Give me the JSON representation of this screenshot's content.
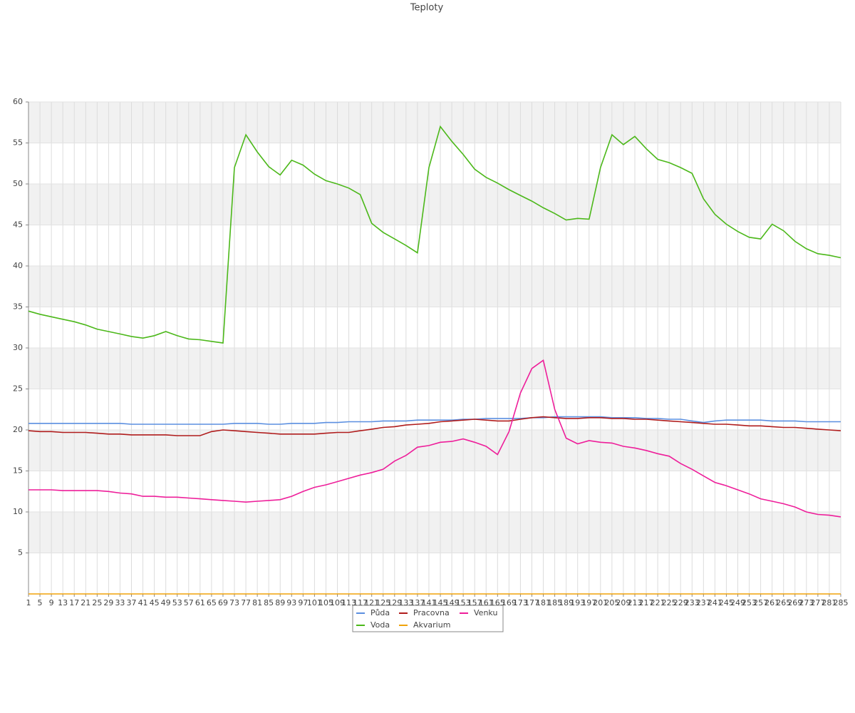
{
  "chart_data": {
    "type": "line",
    "title": "Teploty",
    "x": [
      1,
      5,
      9,
      13,
      17,
      21,
      25,
      29,
      33,
      37,
      41,
      45,
      49,
      53,
      57,
      61,
      65,
      69,
      73,
      77,
      81,
      85,
      89,
      93,
      97,
      101,
      105,
      109,
      113,
      117,
      121,
      125,
      129,
      133,
      137,
      141,
      145,
      149,
      153,
      157,
      161,
      165,
      169,
      173,
      177,
      181,
      185,
      189,
      193,
      197,
      201,
      205,
      209,
      213,
      217,
      221,
      225,
      229,
      233,
      237,
      241,
      245,
      249,
      253,
      257,
      261,
      265,
      269,
      273,
      277,
      281,
      285
    ],
    "xlim": [
      1,
      285
    ],
    "ylim": [
      0,
      60
    ],
    "yticks": [
      5,
      10,
      15,
      20,
      25,
      30,
      35,
      40,
      45,
      50,
      55,
      60
    ],
    "grid": true,
    "series": [
      {
        "name": "Půda",
        "color": "#5b8fe0",
        "values": [
          20.8,
          20.8,
          20.8,
          20.8,
          20.8,
          20.8,
          20.8,
          20.8,
          20.8,
          20.7,
          20.7,
          20.7,
          20.7,
          20.7,
          20.7,
          20.7,
          20.7,
          20.7,
          20.8,
          20.8,
          20.8,
          20.7,
          20.7,
          20.8,
          20.8,
          20.8,
          20.9,
          20.9,
          21.0,
          21.0,
          21.0,
          21.1,
          21.1,
          21.1,
          21.2,
          21.2,
          21.2,
          21.2,
          21.3,
          21.3,
          21.4,
          21.4,
          21.4,
          21.4,
          21.5,
          21.5,
          21.6,
          21.6,
          21.6,
          21.6,
          21.6,
          21.5,
          21.5,
          21.5,
          21.4,
          21.4,
          21.3,
          21.3,
          21.1,
          20.9,
          21.1,
          21.2,
          21.2,
          21.2,
          21.2,
          21.1,
          21.1,
          21.1,
          21.0,
          21.0,
          21.0,
          21.0
        ]
      },
      {
        "name": "Pracovna",
        "color": "#b01c1c",
        "values": [
          19.9,
          19.8,
          19.8,
          19.7,
          19.7,
          19.7,
          19.6,
          19.5,
          19.5,
          19.4,
          19.4,
          19.4,
          19.4,
          19.3,
          19.3,
          19.3,
          19.8,
          20.0,
          19.9,
          19.8,
          19.7,
          19.6,
          19.5,
          19.5,
          19.5,
          19.5,
          19.6,
          19.7,
          19.7,
          19.9,
          20.1,
          20.3,
          20.4,
          20.6,
          20.7,
          20.8,
          21.0,
          21.1,
          21.2,
          21.3,
          21.2,
          21.1,
          21.1,
          21.3,
          21.5,
          21.6,
          21.5,
          21.4,
          21.4,
          21.5,
          21.5,
          21.4,
          21.4,
          21.3,
          21.3,
          21.2,
          21.1,
          21.0,
          20.9,
          20.8,
          20.7,
          20.7,
          20.6,
          20.5,
          20.5,
          20.4,
          20.3,
          20.3,
          20.2,
          20.1,
          20.0,
          19.9
        ]
      },
      {
        "name": "Venku",
        "color": "#ee1e9a",
        "values": [
          12.7,
          12.7,
          12.7,
          12.6,
          12.6,
          12.6,
          12.6,
          12.5,
          12.3,
          12.2,
          11.9,
          11.9,
          11.8,
          11.8,
          11.7,
          11.6,
          11.5,
          11.4,
          11.3,
          11.2,
          11.3,
          11.4,
          11.5,
          11.9,
          12.5,
          13.0,
          13.3,
          13.7,
          14.1,
          14.5,
          14.8,
          15.2,
          16.2,
          16.9,
          17.9,
          18.1,
          18.5,
          18.6,
          18.9,
          18.5,
          18.0,
          17.0,
          19.8,
          24.5,
          27.5,
          28.5,
          22.5,
          19.0,
          18.3,
          18.7,
          18.5,
          18.4,
          18.0,
          17.8,
          17.5,
          17.1,
          16.8,
          15.9,
          15.2,
          14.4,
          13.6,
          13.2,
          12.7,
          12.2,
          11.6,
          11.3,
          11.0,
          10.6,
          10.0,
          9.7,
          9.6,
          9.4
        ]
      },
      {
        "name": "Voda",
        "color": "#4cb81a",
        "values": [
          34.5,
          34.1,
          33.8,
          33.5,
          33.2,
          32.8,
          32.3,
          32.0,
          31.7,
          31.4,
          31.2,
          31.5,
          32.0,
          31.5,
          31.1,
          31.0,
          30.8,
          30.6,
          52,
          56,
          53.9,
          52.1,
          51.1,
          52.9,
          52.3,
          51.2,
          50.4,
          50.0,
          49.5,
          48.7,
          45.2,
          44.1,
          43.3,
          42.5,
          41.6,
          52,
          57.0,
          55.2,
          53.6,
          51.8,
          50.8,
          50.1,
          49.3,
          48.6,
          47.9,
          47.1,
          46.4,
          45.6,
          45.8,
          45.7,
          52,
          56,
          54.8,
          55.8,
          54.3,
          53,
          52.6,
          52,
          51.3,
          48.2,
          46.3,
          45.1,
          44.2,
          43.5,
          43.3,
          45.1,
          44.3,
          43,
          42.1,
          41.5,
          41.3,
          41.0
        ]
      },
      {
        "name": "Akvarium",
        "color": "#f0a30a",
        "values": [
          0,
          0,
          0,
          0,
          0,
          0,
          0,
          0,
          0,
          0,
          0,
          0,
          0,
          0,
          0,
          0,
          0,
          0,
          0,
          0,
          0,
          0,
          0,
          0,
          0,
          0,
          0,
          0,
          0,
          0,
          0,
          0,
          0,
          0,
          0,
          0,
          0,
          0,
          0,
          0,
          0,
          0,
          0,
          0,
          0,
          0,
          0,
          0,
          0,
          0,
          0,
          0,
          0,
          0,
          0,
          0,
          0,
          0,
          0,
          0,
          0,
          0,
          0,
          0,
          0,
          0,
          0,
          0,
          0,
          0,
          0,
          0
        ]
      }
    ]
  }
}
